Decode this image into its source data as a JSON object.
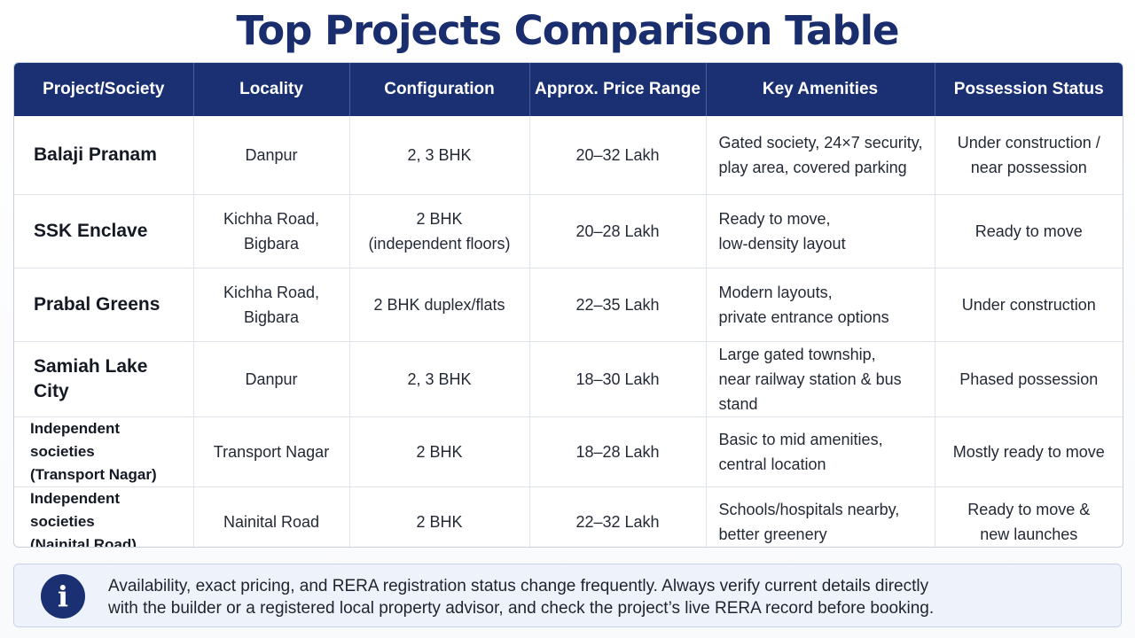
{
  "title": "Top Projects Comparison Table",
  "table": {
    "headers": [
      "Project/Society",
      "Locality",
      "Configuration",
      "Approx. Price Range",
      "Key Amenities",
      "Possession Status"
    ],
    "rows": [
      {
        "project": [
          "Balaji Pranam"
        ],
        "locality": [
          "Danpur"
        ],
        "configuration": [
          "2, 3 BHK"
        ],
        "price": "20–32 Lakh",
        "amenities": [
          "Gated society, 24×7 security,",
          "play area, covered parking"
        ],
        "possession": [
          "Under construction /",
          "near possession"
        ]
      },
      {
        "project": [
          "SSK Enclave"
        ],
        "locality": [
          "Kichha Road,",
          "Bigbara"
        ],
        "configuration": [
          "2 BHK",
          "(independent floors)"
        ],
        "price": "20–28 Lakh",
        "amenities": [
          "Ready to move,",
          "low-density layout"
        ],
        "possession": [
          "Ready to move"
        ]
      },
      {
        "project": [
          "Prabal Greens"
        ],
        "locality": [
          "Kichha Road,",
          "Bigbara"
        ],
        "configuration": [
          "2 BHK duplex/flats"
        ],
        "price": "22–35 Lakh",
        "amenities": [
          "Modern layouts,",
          "private entrance options"
        ],
        "possession": [
          "Under construction"
        ]
      },
      {
        "project": [
          "Samiah Lake City"
        ],
        "locality": [
          "Danpur"
        ],
        "configuration": [
          "2, 3 BHK"
        ],
        "price": "18–30 Lakh",
        "amenities": [
          "Large gated township,",
          "near railway station & bus stand"
        ],
        "possession": [
          "Phased possession"
        ]
      },
      {
        "project": [
          "Independent societies",
          "(Transport Nagar)"
        ],
        "locality": [
          "Transport Nagar"
        ],
        "configuration": [
          "2 BHK"
        ],
        "price": "18–28 Lakh",
        "amenities": [
          "Basic to mid amenities,",
          "central location"
        ],
        "possession": [
          "Mostly ready to move"
        ]
      },
      {
        "project": [
          "Independent societies",
          "(Nainital Road)"
        ],
        "locality": [
          "Nainital Road"
        ],
        "configuration": [
          "2 BHK"
        ],
        "price": "22–32 Lakh",
        "amenities": [
          "Schools/hospitals nearby,",
          "better greenery"
        ],
        "possession": [
          "Ready to move &",
          "new launches"
        ]
      }
    ]
  },
  "note": {
    "icon": "info-icon",
    "lines": [
      "Availability, exact pricing, and RERA registration status change frequently. Always verify current details directly",
      "with the builder or a registered local property advisor, and check the project’s live RERA record before booking."
    ]
  },
  "colors": {
    "title": "#1a2e6e",
    "header_bg": "#1a3072",
    "note_bg": "#eef3fb"
  }
}
